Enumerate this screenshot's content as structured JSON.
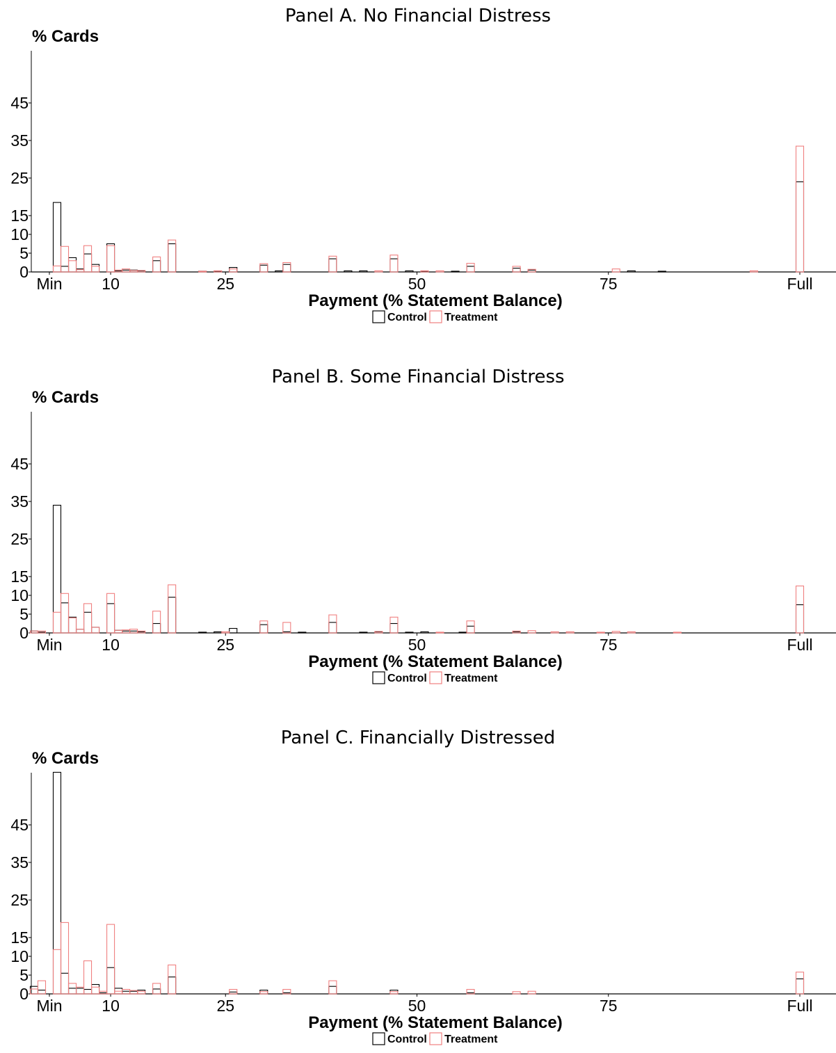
{
  "chart_data": [
    {
      "type": "bar",
      "title": "Panel A. No Financial Distress",
      "ylabel": "% Cards",
      "xlabel": "Payment (% Statement Balance)",
      "xticks": [
        {
          "value": 2,
          "label": "Min"
        },
        {
          "value": 10,
          "label": "10"
        },
        {
          "value": 25,
          "label": "25"
        },
        {
          "value": 50,
          "label": "50"
        },
        {
          "value": 75,
          "label": "75"
        },
        {
          "value": 100,
          "label": "Full"
        }
      ],
      "yticks": [
        0,
        5,
        10,
        15,
        25,
        35,
        45
      ],
      "ylim": [
        0,
        55
      ],
      "legend": [
        "Control",
        "Treatment"
      ],
      "series": [
        {
          "name": "Control",
          "color": "#000000",
          "points": [
            [
              3,
              18.5
            ],
            [
              4,
              1.5
            ],
            [
              5,
              3.8
            ],
            [
              6,
              0.8
            ],
            [
              7,
              4.8
            ],
            [
              8,
              2
            ],
            [
              10,
              7.5
            ],
            [
              11,
              0.3
            ],
            [
              12,
              0.5
            ],
            [
              13,
              0.5
            ],
            [
              14,
              0.3
            ],
            [
              16,
              3
            ],
            [
              18,
              7.5
            ],
            [
              22,
              0.2
            ],
            [
              24,
              0.2
            ],
            [
              26,
              1.2
            ],
            [
              30,
              1.8
            ],
            [
              32,
              0.3
            ],
            [
              33,
              2
            ],
            [
              39,
              3.5
            ],
            [
              41,
              0.3
            ],
            [
              43,
              0.3
            ],
            [
              47,
              3.5
            ],
            [
              49,
              0.3
            ],
            [
              51,
              0.2
            ],
            [
              55,
              0.2
            ],
            [
              57,
              1.5
            ],
            [
              63,
              1
            ],
            [
              65,
              0.5
            ],
            [
              78,
              0.3
            ],
            [
              82,
              0.2
            ],
            [
              100,
              24
            ]
          ]
        },
        {
          "name": "Treatment",
          "color": "#f08080",
          "points": [
            [
              3,
              1.6
            ],
            [
              4,
              6.8
            ],
            [
              5,
              3
            ],
            [
              6,
              0.6
            ],
            [
              7,
              7
            ],
            [
              8,
              1.5
            ],
            [
              10,
              7
            ],
            [
              11,
              0.5
            ],
            [
              12,
              0.8
            ],
            [
              13,
              0.4
            ],
            [
              14,
              0.4
            ],
            [
              16,
              4
            ],
            [
              18,
              8.5
            ],
            [
              22,
              0.2
            ],
            [
              24,
              0.3
            ],
            [
              26,
              0.8
            ],
            [
              30,
              2.2
            ],
            [
              33,
              2.5
            ],
            [
              39,
              4.2
            ],
            [
              45,
              0.3
            ],
            [
              47,
              4.5
            ],
            [
              51,
              0.3
            ],
            [
              53,
              0.3
            ],
            [
              57,
              2.3
            ],
            [
              63,
              1.5
            ],
            [
              65,
              0.7
            ],
            [
              76,
              0.8
            ],
            [
              94,
              0.3
            ],
            [
              100,
              33.5
            ]
          ]
        }
      ]
    },
    {
      "type": "bar",
      "title": "Panel B. Some Financial Distress",
      "ylabel": "% Cards",
      "xlabel": "Payment (% Statement Balance)",
      "xticks": [
        {
          "value": 2,
          "label": "Min"
        },
        {
          "value": 10,
          "label": "10"
        },
        {
          "value": 25,
          "label": "25"
        },
        {
          "value": 50,
          "label": "50"
        },
        {
          "value": 75,
          "label": "75"
        },
        {
          "value": 100,
          "label": "Full"
        }
      ],
      "yticks": [
        0,
        5,
        10,
        15,
        25,
        35,
        45
      ],
      "ylim": [
        0,
        55
      ],
      "legend": [
        "Control",
        "Treatment"
      ],
      "series": [
        {
          "name": "Control",
          "color": "#000000",
          "points": [
            [
              0,
              0.5
            ],
            [
              1,
              0.2
            ],
            [
              3,
              34
            ],
            [
              4,
              8
            ],
            [
              5,
              4.2
            ],
            [
              6,
              1
            ],
            [
              7,
              5.5
            ],
            [
              8,
              1.5
            ],
            [
              10,
              7.8
            ],
            [
              11,
              0.7
            ],
            [
              12,
              0.5
            ],
            [
              13,
              0.5
            ],
            [
              14,
              0.3
            ],
            [
              16,
              2.5
            ],
            [
              18,
              9.5
            ],
            [
              22,
              0.2
            ],
            [
              24,
              0.3
            ],
            [
              26,
              1.2
            ],
            [
              30,
              2.2
            ],
            [
              33,
              0.3
            ],
            [
              35,
              0.2
            ],
            [
              39,
              2.8
            ],
            [
              43,
              0.2
            ],
            [
              45,
              0.3
            ],
            [
              47,
              2.5
            ],
            [
              49,
              0.2
            ],
            [
              51,
              0.3
            ],
            [
              56,
              0.2
            ],
            [
              57,
              1.8
            ],
            [
              63,
              0.3
            ],
            [
              100,
              7.5
            ]
          ]
        },
        {
          "name": "Treatment",
          "color": "#f08080",
          "points": [
            [
              0,
              0.5
            ],
            [
              1,
              0.5
            ],
            [
              3,
              5.5
            ],
            [
              4,
              10.5
            ],
            [
              5,
              4
            ],
            [
              6,
              1
            ],
            [
              7,
              7.8
            ],
            [
              8,
              1.5
            ],
            [
              10,
              10.5
            ],
            [
              11,
              0.7
            ],
            [
              12,
              0.8
            ],
            [
              13,
              1
            ],
            [
              14,
              0.5
            ],
            [
              16,
              5.8
            ],
            [
              18,
              12.8
            ],
            [
              25,
              0.3
            ],
            [
              30,
              3.2
            ],
            [
              33,
              2.8
            ],
            [
              39,
              4.8
            ],
            [
              45,
              0.4
            ],
            [
              47,
              4.2
            ],
            [
              53,
              0.2
            ],
            [
              57,
              3.2
            ],
            [
              63,
              0.5
            ],
            [
              65,
              0.6
            ],
            [
              68,
              0.3
            ],
            [
              70,
              0.3
            ],
            [
              74,
              0.2
            ],
            [
              76,
              0.4
            ],
            [
              78,
              0.3
            ],
            [
              84,
              0.2
            ],
            [
              100,
              12.5
            ]
          ]
        }
      ]
    },
    {
      "type": "bar",
      "title": "Panel C. Financially Distressed",
      "ylabel": "% Cards",
      "xlabel": "Payment (% Statement Balance)",
      "xticks": [
        {
          "value": 2,
          "label": "Min"
        },
        {
          "value": 10,
          "label": "10"
        },
        {
          "value": 25,
          "label": "25"
        },
        {
          "value": 50,
          "label": "50"
        },
        {
          "value": 75,
          "label": "75"
        },
        {
          "value": 100,
          "label": "Full"
        }
      ],
      "yticks": [
        0,
        5,
        10,
        15,
        25,
        35,
        45
      ],
      "ylim": [
        0,
        59
      ],
      "legend": [
        "Control",
        "Treatment"
      ],
      "series": [
        {
          "name": "Control",
          "color": "#000000",
          "points": [
            [
              0,
              2
            ],
            [
              1,
              1
            ],
            [
              3,
              59
            ],
            [
              4,
              5.5
            ],
            [
              5,
              1.5
            ],
            [
              6,
              1.5
            ],
            [
              7,
              1.2
            ],
            [
              8,
              2.5
            ],
            [
              9,
              0.3
            ],
            [
              10,
              7
            ],
            [
              11,
              1.5
            ],
            [
              12,
              0.7
            ],
            [
              13,
              0.7
            ],
            [
              14,
              1
            ],
            [
              16,
              1.3
            ],
            [
              18,
              4.5
            ],
            [
              26,
              0.5
            ],
            [
              30,
              1
            ],
            [
              33,
              0.3
            ],
            [
              39,
              2
            ],
            [
              47,
              1
            ],
            [
              57,
              0.3
            ],
            [
              100,
              4
            ]
          ]
        },
        {
          "name": "Treatment",
          "color": "#f08080",
          "points": [
            [
              0,
              1.3
            ],
            [
              1,
              3.5
            ],
            [
              3,
              11.8
            ],
            [
              4,
              19
            ],
            [
              5,
              2.8
            ],
            [
              6,
              1.8
            ],
            [
              7,
              8.8
            ],
            [
              8,
              1.8
            ],
            [
              9,
              0.7
            ],
            [
              10,
              18.5
            ],
            [
              11,
              0.7
            ],
            [
              12,
              1.2
            ],
            [
              13,
              0.9
            ],
            [
              14,
              0.7
            ],
            [
              16,
              2.8
            ],
            [
              18,
              7.7
            ],
            [
              26,
              1.2
            ],
            [
              30,
              0.6
            ],
            [
              33,
              1.2
            ],
            [
              39,
              3.5
            ],
            [
              47,
              0.6
            ],
            [
              57,
              1.2
            ],
            [
              63,
              0.6
            ],
            [
              65,
              0.7
            ],
            [
              100,
              5.8
            ]
          ]
        }
      ]
    }
  ]
}
